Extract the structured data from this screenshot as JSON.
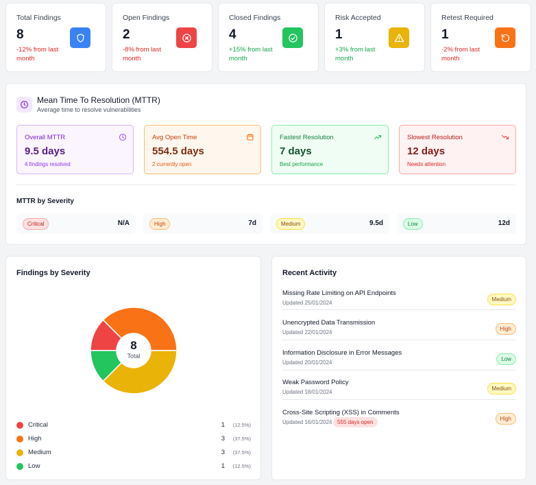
{
  "stats": [
    {
      "label": "Total Findings",
      "value": "8",
      "change": "-12% from last month",
      "trend": "negative",
      "icon": "shield-icon",
      "color": "#3b82f6"
    },
    {
      "label": "Open Findings",
      "value": "2",
      "change": "-8% from last month",
      "trend": "negative",
      "icon": "x-circle-icon",
      "color": "#ef4444"
    },
    {
      "label": "Closed Findings",
      "value": "4",
      "change": "+15% from last month",
      "trend": "positive",
      "icon": "check-circle-icon",
      "color": "#22c55e"
    },
    {
      "label": "Risk Accepted",
      "value": "1",
      "change": "+3% from last month",
      "trend": "positive",
      "icon": "warning-icon",
      "color": "#eab308"
    },
    {
      "label": "Retest Required",
      "value": "1",
      "change": "-2% from last month",
      "trend": "negative",
      "icon": "refresh-icon",
      "color": "#f97316"
    }
  ],
  "mttr": {
    "title": "Mean Time To Resolution (MTTR)",
    "subtitle": "Average time to resolve vulnerabilities",
    "icon": "clock-icon",
    "metrics": [
      {
        "label": "Overall MTTR",
        "value": "9.5 days",
        "note": "4 findings resolved",
        "icon": "clock-icon"
      },
      {
        "label": "Avg Open Time",
        "value": "554.5 days",
        "note": "2 currently open",
        "icon": "calendar-icon"
      },
      {
        "label": "Fastest Resolution",
        "value": "7 days",
        "note": "Best performance",
        "icon": "trending-up-icon"
      },
      {
        "label": "Slowest Resolution",
        "value": "12 days",
        "note": "Needs attention",
        "icon": "trending-down-icon"
      }
    ],
    "by_severity_title": "MTTR by Severity",
    "by_severity": [
      {
        "severity": "Critical",
        "value": "N/A"
      },
      {
        "severity": "High",
        "value": "7d"
      },
      {
        "severity": "Medium",
        "value": "9.5d"
      },
      {
        "severity": "Low",
        "value": "12d"
      }
    ]
  },
  "findings_by_severity": {
    "title": "Findings by Severity",
    "total_value": "8",
    "total_label": "Total",
    "legend": [
      {
        "name": "Critical",
        "count": "1",
        "pct": "(12.5%)",
        "color": "#ef4444"
      },
      {
        "name": "High",
        "count": "3",
        "pct": "(37.5%)",
        "color": "#f97316"
      },
      {
        "name": "Medium",
        "count": "3",
        "pct": "(37.5%)",
        "color": "#eab308"
      },
      {
        "name": "Low",
        "count": "1",
        "pct": "(12.5%)",
        "color": "#22c55e"
      }
    ]
  },
  "chart_data": {
    "type": "pie",
    "categories": [
      "Critical",
      "High",
      "Medium",
      "Low"
    ],
    "values": [
      1,
      3,
      3,
      1
    ],
    "colors": [
      "#ef4444",
      "#f97316",
      "#eab308",
      "#22c55e"
    ],
    "title": "Findings by Severity",
    "center_value": "8",
    "center_label": "Total"
  },
  "recent_activity": {
    "title": "Recent Activity",
    "items": [
      {
        "title": "Missing Rate Limiting on API Endpoints",
        "updated": "Updated 25/01/2024",
        "severity": "Medium",
        "open_badge": ""
      },
      {
        "title": "Unencrypted Data Transmission",
        "updated": "Updated 22/01/2024",
        "severity": "High",
        "open_badge": ""
      },
      {
        "title": "Information Disclosure in Error Messages",
        "updated": "Updated 20/01/2024",
        "severity": "Low",
        "open_badge": ""
      },
      {
        "title": "Weak Password Policy",
        "updated": "Updated 18/01/2024",
        "severity": "Medium",
        "open_badge": ""
      },
      {
        "title": "Cross-Site Scripting (XSS) in Comments",
        "updated": "Updated 16/01/2024",
        "severity": "High",
        "open_badge": "555 days open"
      }
    ]
  }
}
